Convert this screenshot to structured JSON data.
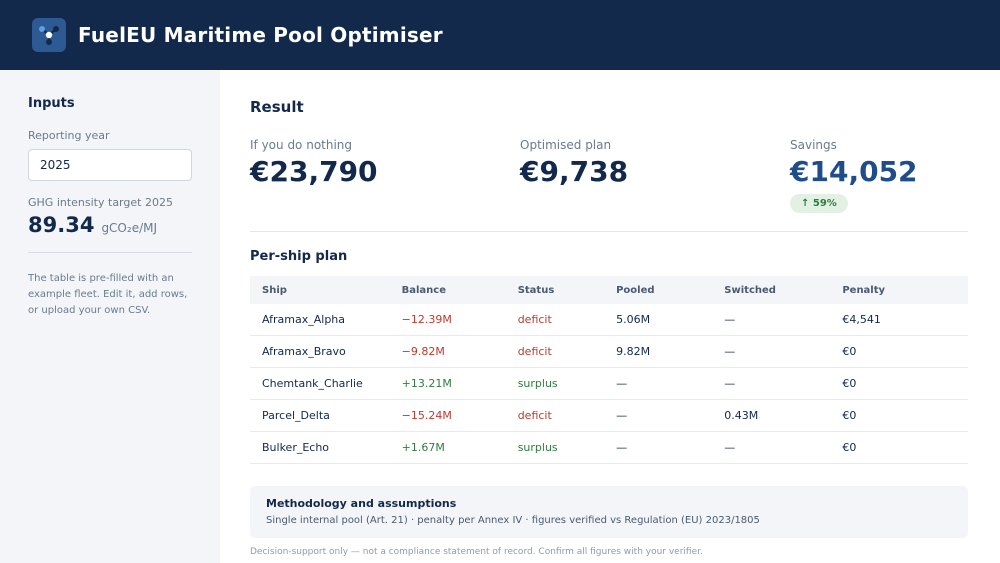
{
  "header": {
    "title": "FuelEU Maritime Pool Optimiser",
    "logo_icon": "network-nodes-icon",
    "background": "#13294b"
  },
  "sidebar": {
    "heading": "Inputs",
    "year_label": "Reporting year",
    "year_value": "2025",
    "target_label": "GHG intensity target 2025",
    "target_value": "89.34",
    "target_unit": "gCO₂e/MJ",
    "note": "The table is pre-filled with an example fleet. Edit it, add rows, or upload your own CSV."
  },
  "result": {
    "title": "Result",
    "do_nothing_label": "If you do nothing",
    "do_nothing_value": "€23,790",
    "optimised_label": "Optimised plan",
    "optimised_value": "€9,738",
    "savings_label": "Savings",
    "savings_value": "€14,052",
    "savings_badge": "↑ 59%",
    "accent_color": "#1f4d89"
  },
  "plan": {
    "title": "Per-ship plan",
    "columns": [
      "Ship",
      "Balance",
      "Status",
      "Pooled",
      "Switched",
      "Penalty"
    ],
    "rows": [
      {
        "ship": "Aframax_Alpha",
        "balance": "−12.39M",
        "status": "deficit",
        "pooled": "5.06M",
        "switched": "—",
        "penalty": "€4,541"
      },
      {
        "ship": "Aframax_Bravo",
        "balance": "−9.82M",
        "status": "deficit",
        "pooled": "9.82M",
        "switched": "—",
        "penalty": "€0"
      },
      {
        "ship": "Chemtank_Charlie",
        "balance": "+13.21M",
        "status": "surplus",
        "pooled": "—",
        "switched": "—",
        "penalty": "€0"
      },
      {
        "ship": "Parcel_Delta",
        "balance": "−15.24M",
        "status": "deficit",
        "pooled": "—",
        "switched": "0.43M",
        "penalty": "€0"
      },
      {
        "ship": "Bulker_Echo",
        "balance": "+1.67M",
        "status": "surplus",
        "pooled": "—",
        "switched": "—",
        "penalty": "€0"
      }
    ]
  },
  "methodology": {
    "title": "Methodology and assumptions",
    "text": "Single internal pool (Art. 21) · penalty per Annex IV · figures verified vs Regulation (EU) 2023/1805"
  },
  "disclaimer": "Decision-support only — not a compliance statement of record. Confirm all figures with your verifier."
}
